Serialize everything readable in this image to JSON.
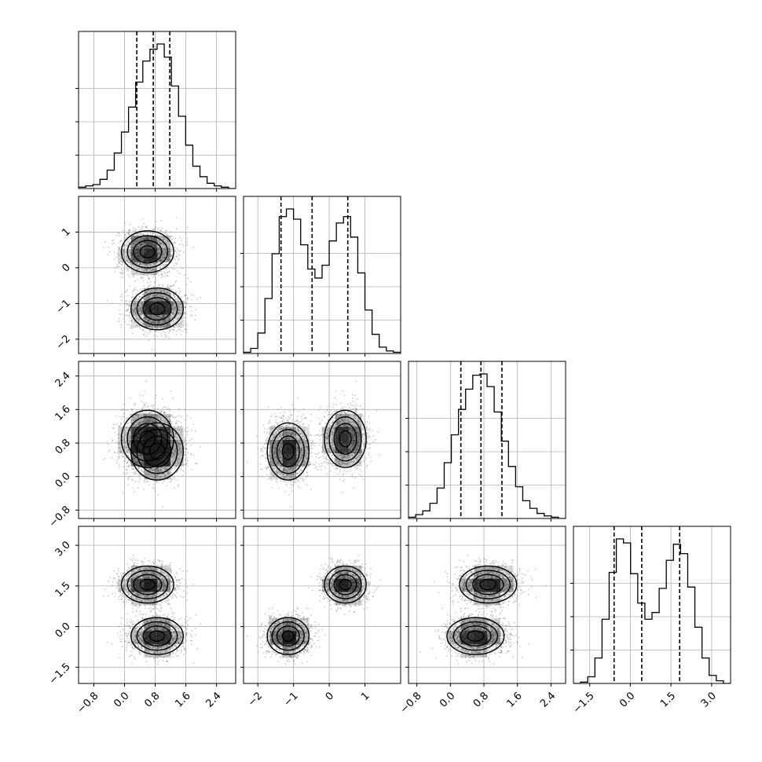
{
  "chart_data": {
    "type": "corner",
    "grid": true,
    "colors": {
      "scatter": "#666666",
      "contour": "#000000",
      "hist": "#000000"
    },
    "params": [
      {
        "name": "",
        "range": [
          -1.2,
          2.9
        ],
        "ticks": [
          -0.8,
          0.0,
          0.8,
          1.6,
          2.4
        ],
        "tick_labels": [
          "−0.8",
          "0.0",
          "0.8",
          "1.6",
          "2.4"
        ]
      },
      {
        "name": "",
        "range": [
          -2.4,
          2.0
        ],
        "ticks": [
          -2,
          -1,
          0,
          1
        ],
        "tick_labels": [
          "−2",
          "−1",
          "0",
          "1"
        ]
      },
      {
        "name": "",
        "range": [
          -1.0,
          2.75
        ],
        "ticks": [
          -0.8,
          0.0,
          0.8,
          1.6,
          2.4
        ],
        "tick_labels": [
          "−0.8",
          "0.0",
          "0.8",
          "1.6",
          "2.4"
        ]
      },
      {
        "name": "",
        "range": [
          -2.1,
          3.7
        ],
        "ticks": [
          -1.5,
          0.0,
          1.5,
          3.0
        ],
        "tick_labels": [
          "−1.5",
          "0.0",
          "1.5",
          "3.0"
        ]
      }
    ],
    "quantiles": [
      [
        0.32,
        0.75,
        1.18
      ],
      [
        -1.35,
        -0.48,
        0.52
      ],
      [
        0.25,
        0.73,
        1.23
      ],
      [
        -0.6,
        0.42,
        1.82
      ]
    ],
    "histograms": [
      {
        "range": [
          -1.2,
          2.9
        ],
        "counts": [
          1,
          2,
          3,
          7,
          14,
          27,
          43,
          62,
          81,
          97,
          106,
          110,
          100,
          78,
          55,
          33,
          17,
          9,
          4,
          2,
          1,
          0
        ]
      },
      {
        "range": [
          -2.4,
          2.0
        ],
        "counts": [
          1,
          4,
          16,
          43,
          78,
          107,
          113,
          105,
          85,
          66,
          59,
          69,
          88,
          102,
          107,
          91,
          63,
          34,
          15,
          5,
          2,
          1
        ]
      },
      {
        "range": [
          -1.0,
          2.75
        ],
        "counts": [
          1,
          3,
          6,
          12,
          24,
          44,
          66,
          86,
          102,
          113,
          114,
          104,
          84,
          61,
          41,
          25,
          14,
          8,
          4,
          2,
          1,
          0
        ]
      },
      {
        "range": [
          -2.1,
          3.7
        ],
        "counts": [
          0,
          1,
          5,
          19,
          48,
          83,
          108,
          105,
          82,
          60,
          48,
          53,
          71,
          92,
          104,
          97,
          72,
          42,
          19,
          6,
          2,
          0
        ]
      }
    ],
    "mixture": {
      "sigma": [
        0.35,
        0.3,
        0.35,
        0.35
      ],
      "components": [
        [
          0.6,
          0.45,
          0.9,
          1.55
        ],
        [
          0.85,
          -1.15,
          0.6,
          -0.35
        ]
      ]
    }
  }
}
